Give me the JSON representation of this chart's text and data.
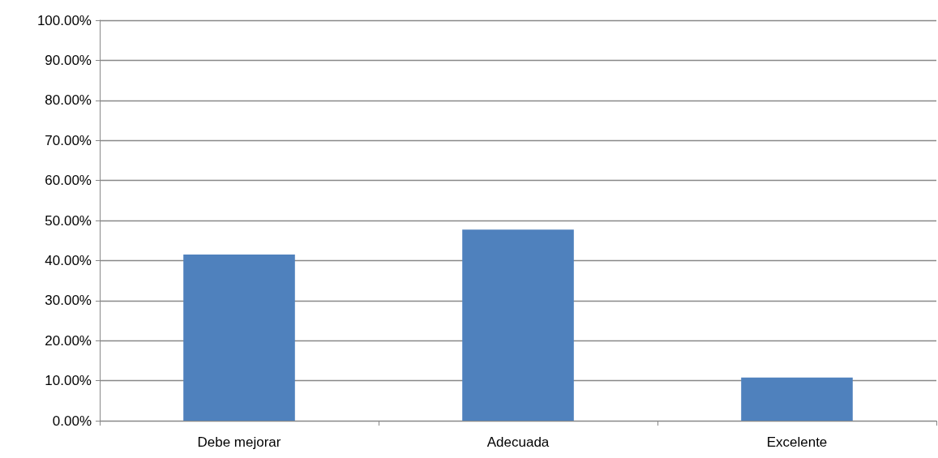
{
  "chart_data": {
    "type": "bar",
    "categories": [
      "Debe mejorar",
      "Adecuada",
      "Excelente"
    ],
    "values": [
      41.5,
      47.7,
      10.8
    ],
    "color": "#4f81bd",
    "ylim": [
      0,
      100
    ],
    "yticks": [
      {
        "value": 0,
        "label": "0.00%"
      },
      {
        "value": 10,
        "label": "10.00%"
      },
      {
        "value": 20,
        "label": "20.00%"
      },
      {
        "value": 30,
        "label": "30.00%"
      },
      {
        "value": 40,
        "label": "40.00%"
      },
      {
        "value": 50,
        "label": "50.00%"
      },
      {
        "value": 60,
        "label": "60.00%"
      },
      {
        "value": 70,
        "label": "70.00%"
      },
      {
        "value": 80,
        "label": "80.00%"
      },
      {
        "value": 90,
        "label": "90.00%"
      },
      {
        "value": 100,
        "label": "100.00%"
      }
    ],
    "grid": "y"
  }
}
